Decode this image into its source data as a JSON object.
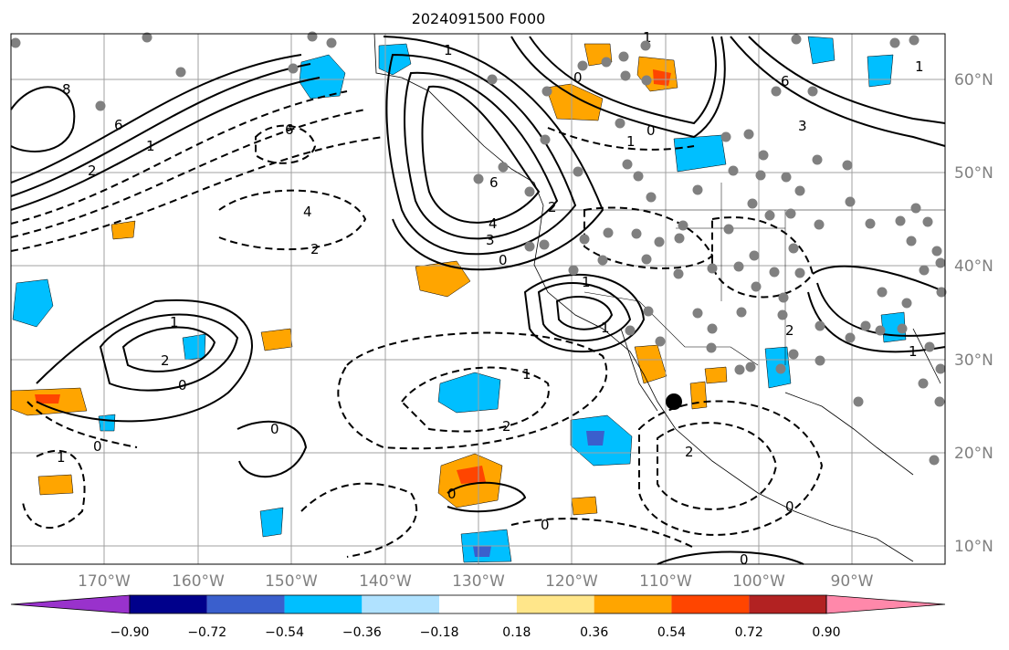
{
  "title": "2024091500 F000",
  "map": {
    "lat_labels": [
      "60°N",
      "50°N",
      "40°N",
      "30°N",
      "20°N",
      "10°N"
    ],
    "lon_labels": [
      "170°W",
      "160°W",
      "150°W",
      "140°W",
      "130°W",
      "120°W",
      "110°W",
      "100°W",
      "90°W"
    ],
    "grid": true
  },
  "colorbar": {
    "labels": [
      "−0.90",
      "−0.72",
      "−0.54",
      "−0.36",
      "−0.18",
      "0.18",
      "0.36",
      "0.54",
      "0.72",
      "0.90"
    ],
    "colors": [
      "#9932cc",
      "#00008b",
      "#3a5fcd",
      "#00bfff",
      "#b0e2ff",
      "#ffffff",
      "#ffe68a",
      "#ffa500",
      "#ff4500",
      "#b22222",
      "#ff88aa"
    ],
    "extend": "both"
  },
  "contour_labels": [
    "8",
    "6",
    "6",
    "4",
    "2",
    "2",
    "1",
    "0",
    "1",
    "0",
    "6",
    "4",
    "3",
    "2",
    "1",
    "0",
    "1",
    "6",
    "3",
    "1",
    "1",
    "2",
    "0",
    "1",
    "2",
    "1",
    "0",
    "1",
    "2",
    "0",
    "1",
    "2",
    "0",
    "0",
    "0",
    "1",
    "0"
  ],
  "colors": {
    "positive_shade": "#ffa500",
    "strong_positive": "#ff4500",
    "negative_shade": "#00bfff",
    "strong_negative": "#3a5fcd",
    "grid": "#a0a0a0",
    "station": "#808080"
  }
}
